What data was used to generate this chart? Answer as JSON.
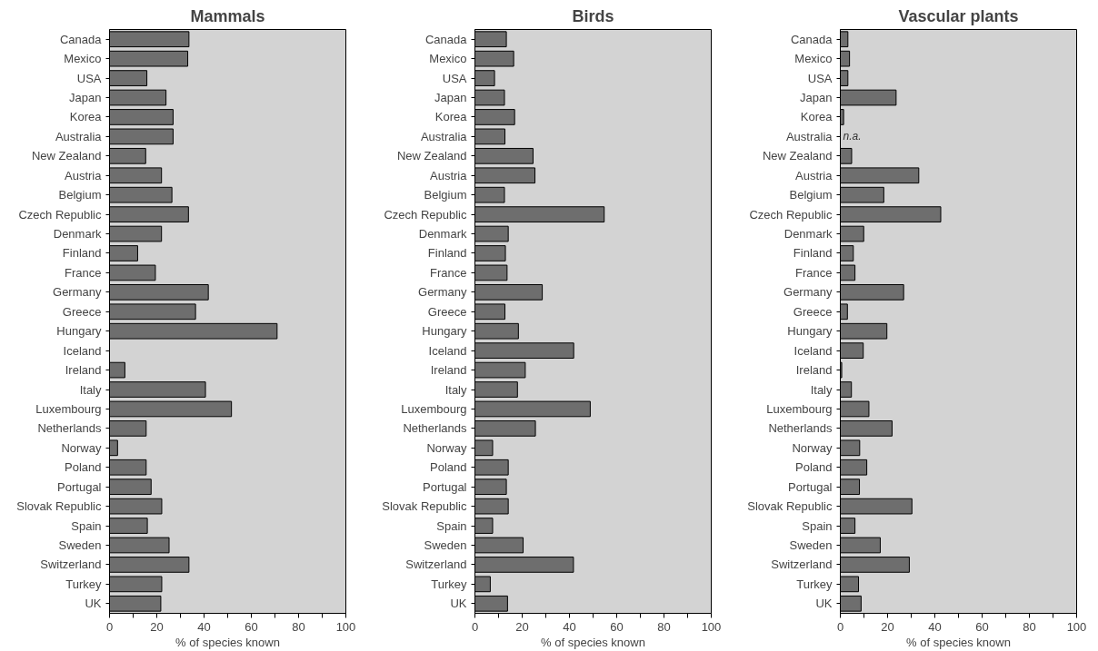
{
  "chart_data": [
    {
      "type": "bar",
      "orientation": "horizontal",
      "title": "Mammals",
      "xlabel": "% of species known",
      "categories": [
        "Canada",
        "Mexico",
        "USA",
        "Japan",
        "Korea",
        "Australia",
        "New Zealand",
        "Austria",
        "Belgium",
        "Czech Republic",
        "Denmark",
        "Finland",
        "France",
        "Germany",
        "Greece",
        "Hungary",
        "Iceland",
        "Ireland",
        "Italy",
        "Luxembourg",
        "Netherlands",
        "Norway",
        "Poland",
        "Portugal",
        "Slovak Republic",
        "Spain",
        "Sweden",
        "Switzerland",
        "Turkey",
        "UK"
      ],
      "values": [
        33.6,
        33.1,
        15.8,
        23.9,
        26.9,
        26.9,
        15.3,
        22,
        26.4,
        33.4,
        22,
        11.9,
        19.4,
        41.8,
        36.4,
        70.9,
        0,
        6.5,
        40.6,
        51.6,
        15.5,
        3.4,
        15.5,
        17.6,
        22.1,
        16,
        25.2,
        33.6,
        22.1,
        21.7
      ],
      "color": "#6e6e6e",
      "xlim": [
        0,
        100
      ],
      "xticks": [
        0,
        {
          "value": 10,
          "label": null
        },
        20,
        {
          "value": 30,
          "label": null
        },
        40,
        {
          "value": 50,
          "label": null
        },
        60,
        {
          "value": 70,
          "label": null
        },
        80,
        {
          "value": 90,
          "label": null
        },
        100
      ],
      "grid": false
    },
    {
      "type": "bar",
      "orientation": "horizontal",
      "title": "Birds",
      "xlabel": "% of species known",
      "categories": [
        "Canada",
        "Mexico",
        "USA",
        "Japan",
        "Korea",
        "Australia",
        "New Zealand",
        "Austria",
        "Belgium",
        "Czech Republic",
        "Denmark",
        "Finland",
        "France",
        "Germany",
        "Greece",
        "Hungary",
        "Iceland",
        "Ireland",
        "Italy",
        "Luxembourg",
        "Netherlands",
        "Norway",
        "Poland",
        "Portugal",
        "Slovak Republic",
        "Spain",
        "Sweden",
        "Switzerland",
        "Turkey",
        "UK"
      ],
      "values": [
        13.3,
        16.4,
        8.3,
        12.5,
        16.8,
        12.7,
        24.6,
        25.4,
        12.5,
        54.7,
        14.1,
        12.9,
        13.6,
        28.5,
        12.7,
        18.4,
        41.8,
        21.3,
        18,
        48.8,
        25.6,
        7.5,
        14.1,
        13.3,
        14.1,
        7.5,
        20.4,
        41.7,
        6.5,
        13.8
      ],
      "color": "#6e6e6e",
      "xlim": [
        0,
        100
      ],
      "xticks": [
        0,
        {
          "value": 10,
          "label": null
        },
        20,
        {
          "value": 30,
          "label": null
        },
        40,
        {
          "value": 50,
          "label": null
        },
        60,
        {
          "value": 70,
          "label": null
        },
        80,
        {
          "value": 90,
          "label": null
        },
        100
      ],
      "grid": false
    },
    {
      "type": "bar",
      "orientation": "horizontal",
      "title": "Vascular plants",
      "xlabel": "% of species known",
      "categories": [
        "Canada",
        "Mexico",
        "USA",
        "Japan",
        "Korea",
        "Australia",
        "New Zealand",
        "Austria",
        "Belgium",
        "Czech Republic",
        "Denmark",
        "Finland",
        "France",
        "Germany",
        "Greece",
        "Hungary",
        "Iceland",
        "Ireland",
        "Italy",
        "Luxembourg",
        "Netherlands",
        "Norway",
        "Poland",
        "Portugal",
        "Slovak Republic",
        "Spain",
        "Sweden",
        "Switzerland",
        "Turkey",
        "UK"
      ],
      "values": [
        3.2,
        3.9,
        3.2,
        23.6,
        1.4,
        null,
        4.8,
        33.2,
        18.4,
        42.5,
        9.9,
        5.5,
        6.2,
        26.8,
        3,
        19.7,
        9.7,
        0.6,
        4.7,
        12.1,
        21.9,
        8.2,
        11.2,
        8.1,
        30.3,
        6.2,
        16.9,
        29.2,
        7.7,
        8.8
      ],
      "color": "#6e6e6e",
      "xlim": [
        0,
        100
      ],
      "xticks": [
        0,
        {
          "value": 10,
          "label": null
        },
        20,
        {
          "value": 30,
          "label": null
        },
        40,
        {
          "value": 50,
          "label": null
        },
        60,
        {
          "value": 70,
          "label": null
        },
        80,
        {
          "value": 90,
          "label": null
        },
        100
      ],
      "grid": false,
      "annotations": [
        {
          "text": "n.a.",
          "x": 0,
          "y": "Australia"
        }
      ]
    }
  ]
}
